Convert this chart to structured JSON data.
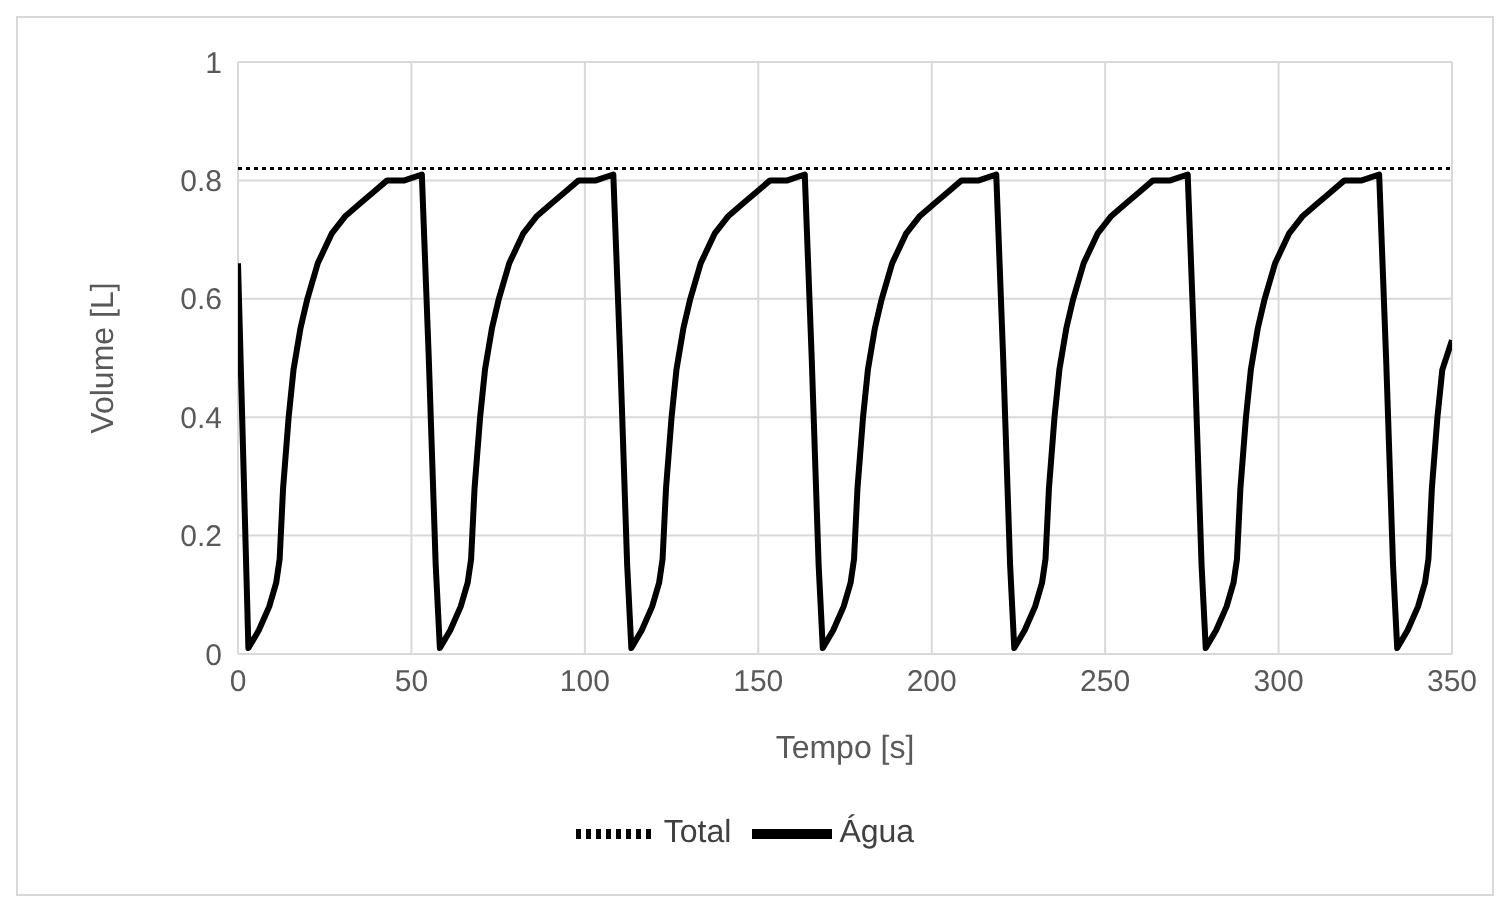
{
  "chart_data": {
    "type": "line",
    "xlabel": "Tempo [s]",
    "ylabel": "Volume [L]",
    "xlim": [
      0,
      350
    ],
    "xticks": [
      0,
      50,
      100,
      150,
      200,
      250,
      300,
      350
    ],
    "ylim": [
      0,
      1
    ],
    "yticks": [
      0,
      0.2,
      0.4,
      0.6,
      0.8,
      1
    ],
    "grid": true,
    "legend": "bottom",
    "marker": "none",
    "series": [
      {
        "name": "Água",
        "color": "#000000",
        "line_style": "solid",
        "x": [
          0,
          3,
          6,
          9,
          11,
          12,
          13,
          14.6,
          16,
          18,
          20,
          23,
          27,
          31,
          35,
          39,
          43,
          48,
          53,
          55,
          57,
          58.2,
          61.2,
          64.2,
          66.2,
          67.2,
          68.2,
          69.8,
          71.2,
          73.2,
          75.2,
          78.2,
          82.2,
          86.2,
          90.2,
          94.2,
          98.2,
          103.2,
          108.2,
          110.2,
          112.2,
          113.4,
          116.4,
          119.4,
          121.4,
          122.4,
          123.4,
          125,
          126.4,
          128.4,
          130.4,
          133.4,
          137.4,
          141.4,
          145.4,
          149.4,
          153.4,
          158.4,
          163.4,
          165.4,
          167.4,
          168.6,
          171.6,
          174.6,
          176.6,
          177.6,
          178.6,
          180.2,
          181.6,
          183.6,
          185.6,
          188.6,
          192.6,
          196.6,
          200.6,
          204.6,
          208.6,
          213.6,
          218.6,
          220.6,
          222.6,
          223.8,
          226.8,
          229.8,
          231.8,
          232.8,
          233.8,
          235.4,
          236.8,
          238.8,
          240.8,
          243.8,
          247.8,
          251.8,
          255.8,
          259.8,
          263.8,
          268.8,
          273.8,
          275.8,
          277.8,
          279,
          282,
          285,
          287,
          288,
          289,
          290.6,
          292,
          294,
          296,
          299,
          303,
          307,
          311,
          315,
          319,
          324,
          329,
          331,
          333,
          334.2,
          337.2,
          340.2,
          342.2,
          343.2,
          344.2,
          345.8,
          347.2,
          350
        ],
        "values": [
          0.66,
          0.01,
          0.04,
          0.08,
          0.12,
          0.16,
          0.28,
          0.4,
          0.48,
          0.55,
          0.6,
          0.66,
          0.71,
          0.74,
          0.76,
          0.78,
          0.8,
          0.8,
          0.81,
          0.5,
          0.15,
          0.01,
          0.04,
          0.08,
          0.12,
          0.16,
          0.28,
          0.4,
          0.48,
          0.55,
          0.6,
          0.66,
          0.71,
          0.74,
          0.76,
          0.78,
          0.8,
          0.8,
          0.81,
          0.5,
          0.15,
          0.01,
          0.04,
          0.08,
          0.12,
          0.16,
          0.28,
          0.4,
          0.48,
          0.55,
          0.6,
          0.66,
          0.71,
          0.74,
          0.76,
          0.78,
          0.8,
          0.8,
          0.81,
          0.5,
          0.15,
          0.01,
          0.04,
          0.08,
          0.12,
          0.16,
          0.28,
          0.4,
          0.48,
          0.55,
          0.6,
          0.66,
          0.71,
          0.74,
          0.76,
          0.78,
          0.8,
          0.8,
          0.81,
          0.5,
          0.15,
          0.01,
          0.04,
          0.08,
          0.12,
          0.16,
          0.28,
          0.4,
          0.48,
          0.55,
          0.6,
          0.66,
          0.71,
          0.74,
          0.76,
          0.78,
          0.8,
          0.8,
          0.81,
          0.5,
          0.15,
          0.01,
          0.04,
          0.08,
          0.12,
          0.16,
          0.28,
          0.4,
          0.48,
          0.55,
          0.6,
          0.66,
          0.71,
          0.74,
          0.76,
          0.78,
          0.8,
          0.8,
          0.81,
          0.5,
          0.15,
          0.01,
          0.04,
          0.08,
          0.12,
          0.16,
          0.28,
          0.4,
          0.48,
          0.53
        ]
      },
      {
        "name": "Total",
        "color": "#000000",
        "line_style": "dotted",
        "x": [
          0,
          350
        ],
        "values": [
          0.82,
          0.82
        ]
      }
    ]
  }
}
